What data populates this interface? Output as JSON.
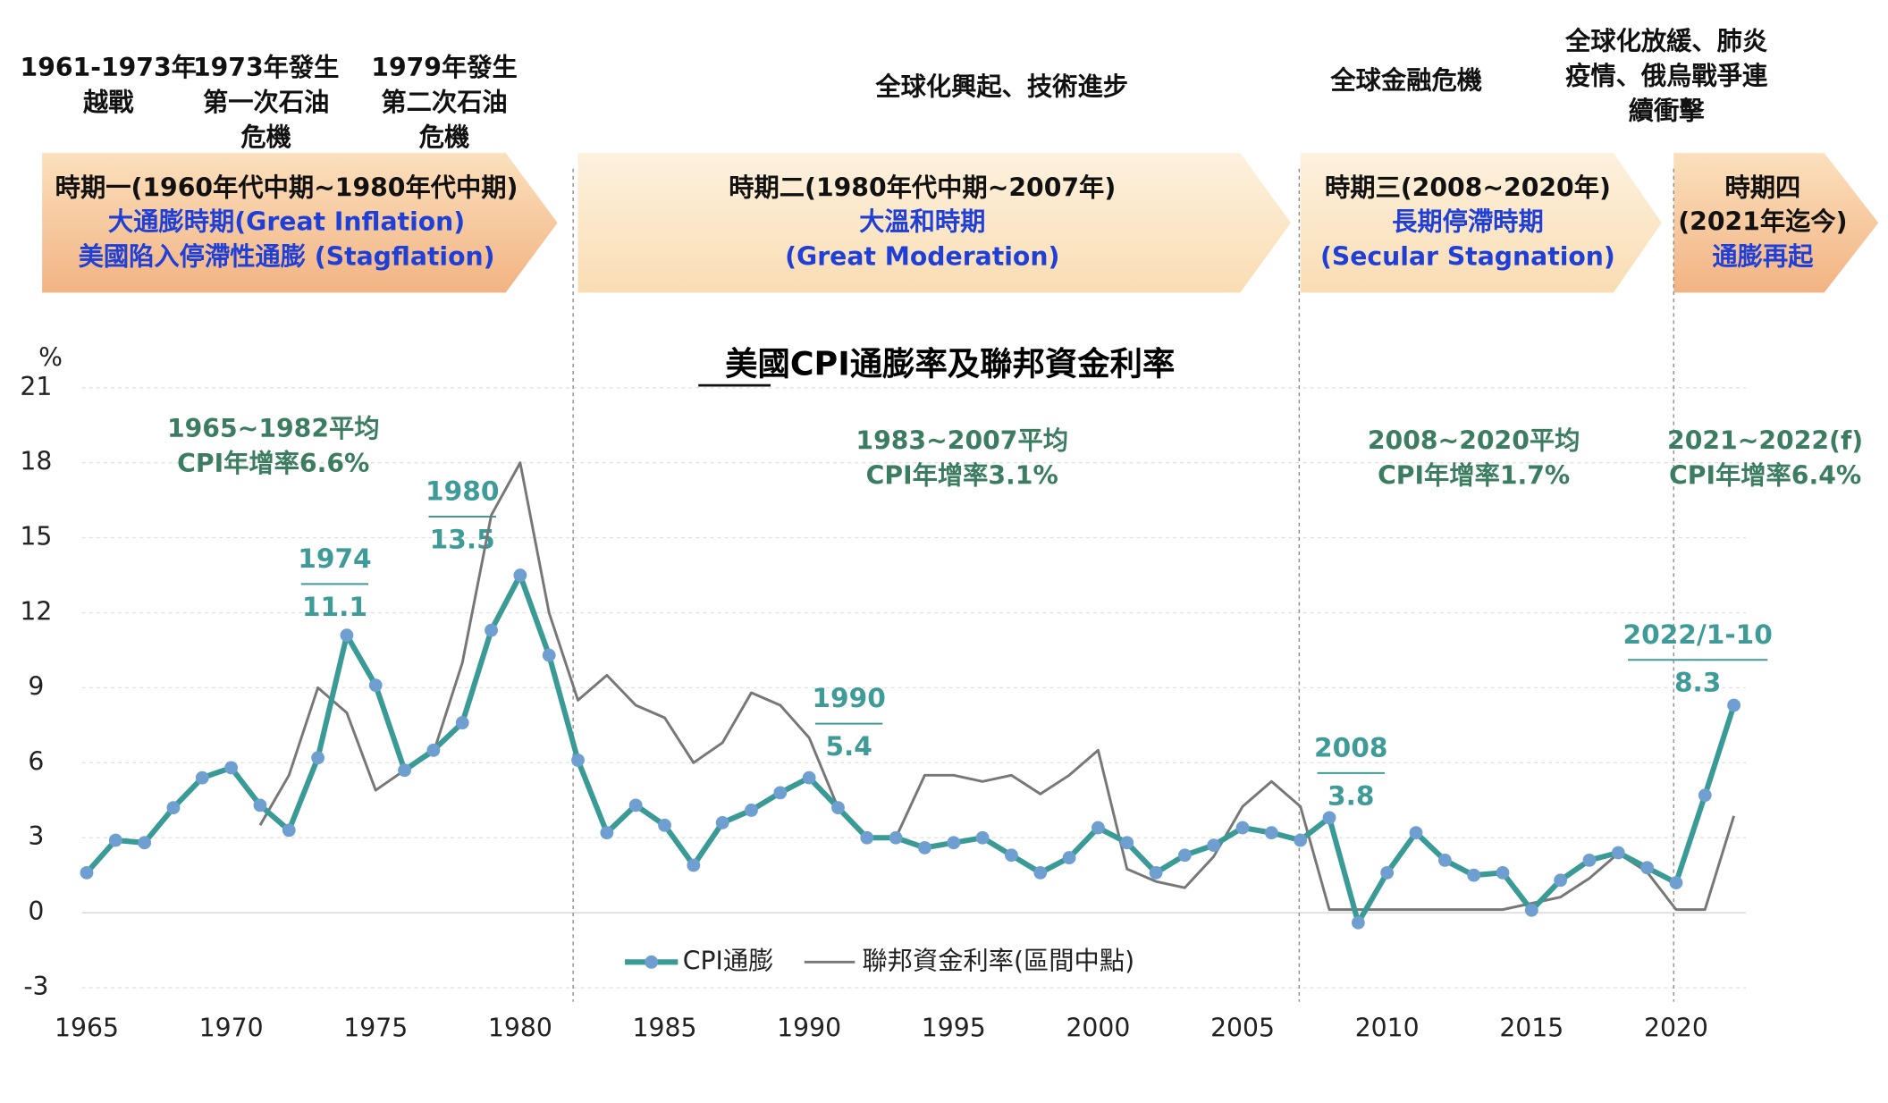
{
  "chart_data": {
    "type": "line",
    "title": "美國CPI通膨率及聯邦資金利率",
    "y_unit": "%",
    "events": [
      [
        "1961-1973年",
        "越戰"
      ],
      [
        "1973年發生",
        "第一次石油",
        "危機"
      ],
      [
        "1979年發生",
        "第二次石油",
        "危機"
      ],
      [
        "全球化興起、技術進步"
      ],
      [
        "全球金融危機"
      ],
      [
        "全球化放緩、肺炎",
        "疫情、俄烏戰爭連",
        "續衝擊"
      ]
    ],
    "periods": [
      {
        "title": "時期一(1960年代中期~1980年代中期)",
        "subtitle": [
          "大通膨時期(Great Inflation)",
          "美國陷入停滯性通膨 (Stagflation)"
        ]
      },
      {
        "title": "時期二(1980年代中期~2007年)",
        "subtitle": [
          "大溫和時期",
          "(Great Moderation)"
        ]
      },
      {
        "title": "時期三(2008~2020年)",
        "subtitle": [
          "長期停滯時期",
          "(Secular Stagnation)"
        ]
      },
      {
        "title": "時期四",
        "subtitle": [
          "(2021年迄今)",
          "通膨再起"
        ]
      }
    ],
    "averages": [
      [
        "1965~1982平均",
        "CPI年增率6.6%"
      ],
      [
        "1983~2007平均",
        "CPI年增率3.1%"
      ],
      [
        "2008~2020平均",
        "CPI年增率1.7%"
      ],
      [
        "2021~2022(f)",
        "CPI年增率6.4%"
      ]
    ],
    "callouts": [
      {
        "label": "1974",
        "value": "11.1"
      },
      {
        "label": "1980",
        "value": "13.5"
      },
      {
        "label": "1990",
        "value": "5.4"
      },
      {
        "label": "2008",
        "value": "3.8"
      },
      {
        "label": "2022/1-10",
        "value": "8.3"
      }
    ],
    "x": [
      1965,
      1966,
      1967,
      1968,
      1969,
      1970,
      1971,
      1972,
      1973,
      1974,
      1975,
      1976,
      1977,
      1978,
      1979,
      1980,
      1981,
      1982,
      1983,
      1984,
      1985,
      1986,
      1987,
      1988,
      1989,
      1990,
      1991,
      1992,
      1993,
      1994,
      1995,
      1996,
      1997,
      1998,
      1999,
      2000,
      2001,
      2002,
      2003,
      2004,
      2005,
      2006,
      2007,
      2008,
      2009,
      2010,
      2011,
      2012,
      2013,
      2014,
      2015,
      2016,
      2017,
      2018,
      2019,
      2020,
      2021,
      2022
    ],
    "series": [
      {
        "name": "CPI通膨",
        "color": "#3a9a96",
        "values": [
          1.6,
          2.9,
          2.8,
          4.2,
          5.4,
          5.8,
          4.3,
          3.3,
          6.2,
          11.1,
          9.1,
          5.7,
          6.5,
          7.6,
          11.3,
          13.5,
          10.3,
          6.1,
          3.2,
          4.3,
          3.5,
          1.9,
          3.6,
          4.1,
          4.8,
          5.4,
          4.2,
          3.0,
          3.0,
          2.6,
          2.8,
          3.0,
          2.3,
          1.6,
          2.2,
          3.4,
          2.8,
          1.6,
          2.3,
          2.7,
          3.4,
          3.2,
          2.9,
          3.8,
          -0.4,
          1.6,
          3.2,
          2.1,
          1.5,
          1.6,
          0.1,
          1.3,
          2.1,
          2.4,
          1.8,
          1.2,
          4.7,
          8.3
        ]
      },
      {
        "name": "聯邦資金利率(區間中點)",
        "color": "#777777",
        "values": [
          null,
          null,
          null,
          null,
          null,
          null,
          3.5,
          5.5,
          9.0,
          8.0,
          4.9,
          5.7,
          6.4,
          10.0,
          15.9,
          18.0,
          12.0,
          8.5,
          9.5,
          8.3,
          7.8,
          6.0,
          6.8,
          8.8,
          8.3,
          7.0,
          4.2,
          3.0,
          3.0,
          5.5,
          5.5,
          5.25,
          5.5,
          4.75,
          5.5,
          6.5,
          1.75,
          1.25,
          1.0,
          2.25,
          4.25,
          5.25,
          4.25,
          0.125,
          0.125,
          0.125,
          0.125,
          0.125,
          0.125,
          0.125,
          0.375,
          0.625,
          1.375,
          2.375,
          1.625,
          0.125,
          0.125,
          3.875
        ]
      }
    ],
    "xlim": [
      1965,
      2022
    ],
    "xticks": [
      1965,
      1970,
      1975,
      1980,
      1985,
      1990,
      1995,
      2000,
      2005,
      2010,
      2015,
      2020
    ],
    "ylim": [
      -3,
      21
    ],
    "yticks": [
      -3,
      0,
      3,
      6,
      9,
      12,
      15,
      18,
      21
    ],
    "grid": true
  }
}
